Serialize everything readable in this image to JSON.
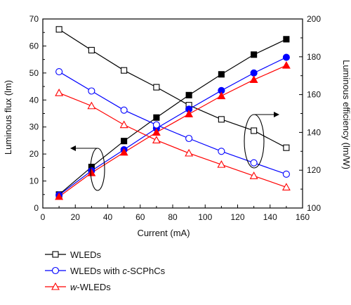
{
  "chart_data": {
    "type": "line",
    "xlabel": "Current (mA)",
    "ylabel_left": "Luminous flux (lm)",
    "ylabel_right": "Luminous efficiency (lm/W)",
    "xlim": [
      0,
      160
    ],
    "xticks": [
      0,
      20,
      40,
      60,
      80,
      100,
      120,
      140,
      160
    ],
    "ylim_left": [
      0,
      70
    ],
    "yticks_left": [
      0,
      10,
      20,
      30,
      40,
      50,
      60,
      70
    ],
    "ylim_right": [
      100,
      200
    ],
    "yticks_right": [
      100,
      120,
      140,
      160,
      180,
      200
    ],
    "x": [
      10,
      30,
      50,
      70,
      90,
      110,
      130,
      150
    ],
    "grid": false,
    "legend_placement": "below",
    "series": [
      {
        "name": "WLEDs",
        "legend_parts": [
          {
            "text": "WLEDs",
            "italic": false
          }
        ],
        "color": "#000000",
        "marker": "square",
        "flux": [
          5.0,
          15.2,
          24.8,
          33.5,
          41.8,
          49.5,
          56.8,
          62.5
        ],
        "efficiency": [
          194.5,
          183.5,
          172.8,
          163.9,
          154.4,
          146.9,
          140.9,
          131.9
        ]
      },
      {
        "name": "WLEDs with c-SCPhCs",
        "legend_parts": [
          {
            "text": "WLEDs with ",
            "italic": false
          },
          {
            "text": "c",
            "italic": true
          },
          {
            "text": "-SCPhCs",
            "italic": false
          }
        ],
        "color": "#0000ff",
        "marker": "circle",
        "flux": [
          4.8,
          13.8,
          21.6,
          29.5,
          36.6,
          43.5,
          50.0,
          55.8
        ],
        "efficiency": [
          172.1,
          161.9,
          151.8,
          144.0,
          136.8,
          130.0,
          123.9,
          117.9
        ]
      },
      {
        "name": "w-WLEDs",
        "legend_parts": [
          {
            "text": "w",
            "italic": true
          },
          {
            "text": "-WLEDs",
            "italic": false
          }
        ],
        "color": "#ff0000",
        "marker": "triangle",
        "flux": [
          4.2,
          13.0,
          20.6,
          28.0,
          34.8,
          41.5,
          47.5,
          52.8
        ],
        "efficiency": [
          160.9,
          154.0,
          144.0,
          135.9,
          129.0,
          123.0,
          117.0,
          111.0
        ]
      }
    ],
    "annotations": [
      "flux-group-ellipse-with-left-arrow",
      "efficiency-group-ellipse-with-right-arrow"
    ]
  }
}
